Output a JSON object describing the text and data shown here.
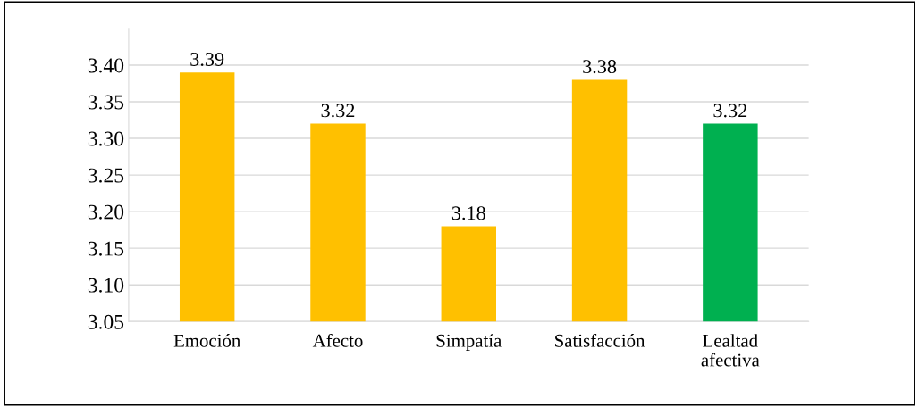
{
  "chart_data": {
    "type": "bar",
    "categories": [
      "Emoción",
      "Afecto",
      "Simpatía",
      "Satisfacción",
      "Lealtad\nafectiva"
    ],
    "values": [
      3.39,
      3.32,
      3.18,
      3.38,
      3.32
    ],
    "colors": [
      "#ffc000",
      "#ffc000",
      "#ffc000",
      "#ffc000",
      "#00b050"
    ],
    "ylim": [
      3.05,
      3.45
    ],
    "yticks": [
      3.05,
      {
        "value": 3.1,
        "label": "3.10"
      },
      3.15,
      {
        "value": 3.2,
        "label": "3.20"
      },
      3.25,
      {
        "value": 3.3,
        "label": "3.30"
      },
      3.35,
      {
        "value": 3.4,
        "label": "3.40"
      },
      {
        "value": 3.45,
        "label": null
      }
    ],
    "grid": "y",
    "data_labels": true
  }
}
